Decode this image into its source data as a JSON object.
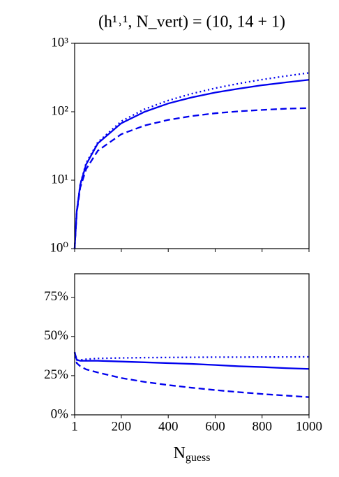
{
  "chart_data": [
    {
      "type": "line",
      "title": "(h¹˒¹, N_vert) = (10, 14 + 1)",
      "log_scale": true,
      "x": [
        1,
        10,
        25,
        50,
        100,
        200,
        300,
        400,
        500,
        600,
        700,
        800,
        900,
        1000
      ],
      "series": [
        {
          "color": "#0000ee",
          "dash": "solid",
          "values": [
            1,
            3.5,
            8.6,
            17,
            34.5,
            68,
            100,
            132,
            162,
            191,
            217,
            244,
            268,
            293
          ]
        },
        {
          "color": "#0000ee",
          "dash": "dotted",
          "values": [
            1,
            3.5,
            8.8,
            17.8,
            36,
            72.6,
            109.5,
            146,
            183.5,
            221,
            258,
            295,
            332,
            370
          ]
        },
        {
          "color": "#0000ee",
          "dash": "dashed",
          "values": [
            1,
            3.3,
            7.8,
            14.5,
            27,
            47,
            63,
            76,
            86.5,
            95,
            101.5,
            106.4,
            110.7,
            113
          ]
        }
      ],
      "xlim": [
        1,
        1000
      ],
      "xticks": [
        1,
        200,
        400,
        600,
        800,
        1000
      ],
      "xtick_labels": false,
      "ylim": [
        1,
        1000
      ],
      "yticks": [
        {
          "value": 1,
          "label": "10⁰"
        },
        {
          "value": 10,
          "label": "10¹"
        },
        {
          "value": 100,
          "label": "10²"
        },
        {
          "value": 1000,
          "label": "10³"
        }
      ]
    },
    {
      "type": "line",
      "xlabel": [
        "N",
        "guess"
      ],
      "x": [
        1,
        10,
        25,
        50,
        100,
        200,
        300,
        400,
        500,
        600,
        700,
        800,
        900,
        1000
      ],
      "series": [
        {
          "color": "#0000ee",
          "dash": "solid",
          "values": [
            40,
            35,
            34.5,
            34.5,
            34.5,
            34,
            33.5,
            33,
            32.5,
            31.8,
            31,
            30.5,
            29.8,
            29.3
          ]
        },
        {
          "color": "#0000ee",
          "dash": "dotted",
          "values": [
            40,
            35,
            35,
            35.5,
            36,
            36.3,
            36.5,
            36.6,
            36.7,
            36.8,
            36.8,
            36.9,
            36.9,
            37
          ]
        },
        {
          "color": "#0000ee",
          "dash": "dashed",
          "values": [
            40,
            33,
            31,
            29,
            27,
            23.5,
            21,
            19,
            17.3,
            15.8,
            14.5,
            13.3,
            12.3,
            11.3
          ]
        }
      ],
      "xlim": [
        1,
        1000
      ],
      "xticks": [
        1,
        200,
        400,
        600,
        800,
        1000
      ],
      "xtick_labels": true,
      "ylim": [
        0,
        90
      ],
      "yticks": [
        {
          "value": 0,
          "label": "0%"
        },
        {
          "value": 25,
          "label": "25%"
        },
        {
          "value": 50,
          "label": "50%"
        },
        {
          "value": 75,
          "label": "75%"
        }
      ]
    }
  ]
}
